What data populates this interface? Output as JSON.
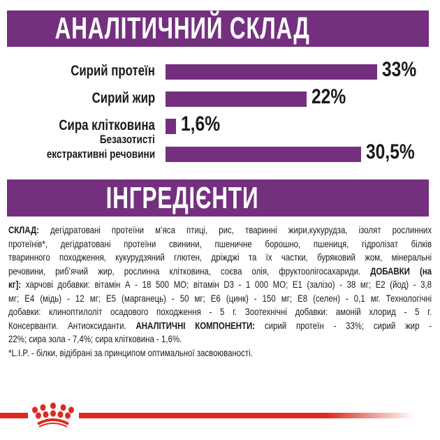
{
  "analysis": {
    "title": "АНАЛІТИЧНИЙ СКЛАД",
    "chart_data": {
      "type": "bar",
      "orientation": "horizontal",
      "categories": [
        "Сирий протеїн",
        "Сирий жир",
        "Сира клітковина",
        "Безазотисті екстрактивні речовини"
      ],
      "values": [
        33,
        22,
        1.6,
        30.5
      ],
      "data_labels": [
        "33%",
        "22%",
        "1,6%",
        "30,5%"
      ],
      "color": "#74307f"
    },
    "label_lines": [
      [
        "Сирий протеїн"
      ],
      [
        "Сирий жир"
      ],
      [
        "Сира клітковина"
      ],
      [
        "Безазотисті",
        "екстрактивні речовини"
      ]
    ]
  },
  "ingredients": {
    "title": "ІНГРЕДІЄНТИ",
    "lines": [
      [
        {
          "b": true,
          "text": "СКЛАД:"
        },
        {
          "text": " дегідратовані протеїни м’яса птиці, рис, тваринні жири,кукурудза, ізолят рослинних"
        }
      ],
      [
        {
          "text": "протеїнів*, дегідратовані протеїни свинини, пшеничне борошно, пшениця, гідролізат білків"
        }
      ],
      [
        {
          "text": "тваринного походження, кукурудзяний глютен, дріжджі та їх частки, буряковий жом, мінеральні"
        }
      ],
      [
        {
          "text": "речовини, риб’ячий жир, рослинна клітковина, соєва олія, фруктоолігосахариди.  "
        },
        {
          "b": true,
          "text": "ДОБАВКИ (на"
        }
      ],
      [
        {
          "b": true,
          "text": "кг]:"
        },
        {
          "text": " харчові добавки: вітамін А - 18 500 МО; вітамін D3 - 1 000 МО; Е1 (залізо) - 38 мг; Е2 (йод) - 3,8"
        }
      ],
      [
        {
          "text": "мг; Е4 (мідь) - 12 мг; Е5 (марганець) - 50 мг; Е6 (цинк) - 150 мг; Е8 (селен) - 0,1 мг.  Технологічні"
        }
      ],
      [
        {
          "text": "добавки: клиноптилоліт осадового походження - 5 г. Зоотехнічні добавки: амоній хлорид - 5 г."
        }
      ],
      [
        {
          "text": "Консерванти. Антиоксиданти.  "
        },
        {
          "b": true,
          "text": "АНАЛІТИЧНІ КОМПОНЕНТИ:"
        },
        {
          "text": " сирий протеїн - 33%; сирий жир -"
        }
      ],
      [
        {
          "text": "22%; сира зола - 7,4%; сира клітковина - 1,6%."
        }
      ],
      [
        {
          "text": "*L.I.P. - білки, відібрані за принципом оптимальної засвоюваності."
        }
      ]
    ]
  },
  "footer": {
    "logo": "royal-canin-crown",
    "line_color": "#dc2a20"
  }
}
